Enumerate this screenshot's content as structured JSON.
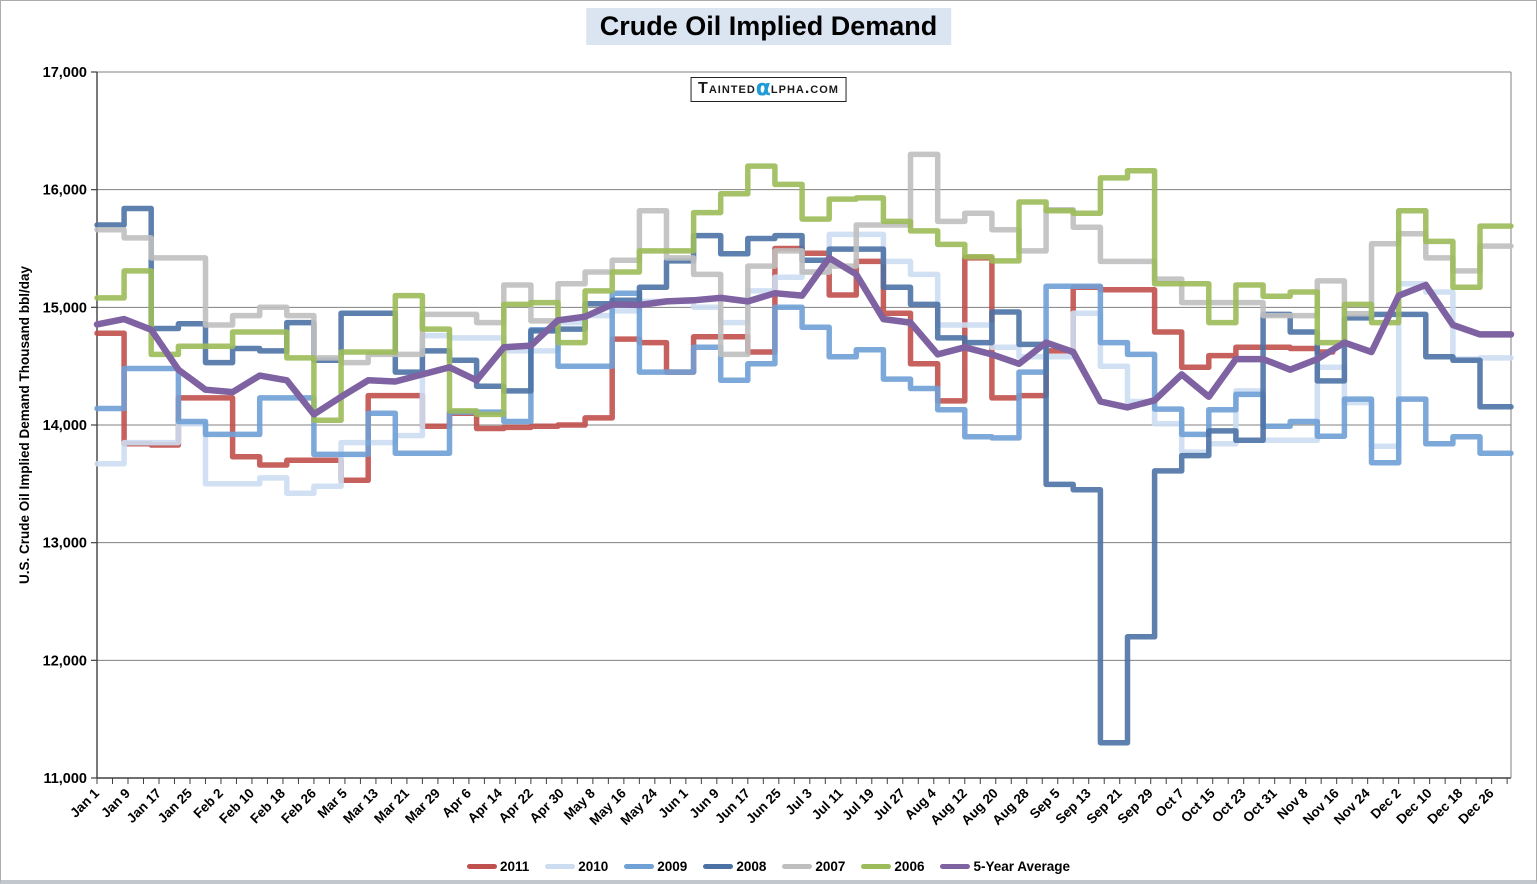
{
  "title": "Crude Oil Implied Demand",
  "watermark": {
    "prefix": "Tainted",
    "alpha": "α",
    "suffix": "lpha.com"
  },
  "legend": {
    "position": "bottom",
    "labels": [
      "2011",
      "2010",
      "2009",
      "2008",
      "2007",
      "2006",
      "5-Year Average"
    ]
  },
  "colors": {
    "2011": "#C0504D",
    "2010": "#CCDDF2",
    "2009": "#6FA0D6",
    "2008": "#4C72A5",
    "2007": "#BFBFBF",
    "2006": "#9CBB59",
    "5-Year Average": "#7E62A1",
    "title_background": "#dbe5f1",
    "watermark_alpha": "#1f9cd8",
    "gridline": "#808080",
    "axis": "#404040"
  },
  "chart_data": {
    "type": "line",
    "step": true,
    "title": "Crude Oil Implied Demand",
    "xlabel": "",
    "ylabel": "U.S. Crude Oil Implied Demand Thousand bbl/day",
    "ylim": [
      11000,
      17000
    ],
    "ytick_step": 1000,
    "grid": "horizontal",
    "legend_position": "bottom",
    "span_days": 365,
    "x_tick_step_days": 8,
    "point_interval_days": 7,
    "x_tick_labels": [
      "Jan 1",
      "Jan 9",
      "Jan 17",
      "Jan 25",
      "Feb 2",
      "Feb 10",
      "Feb 18",
      "Feb 26",
      "Mar 5",
      "Mar 13",
      "Mar 21",
      "Mar 29",
      "Apr 6",
      "Apr 14",
      "Apr 22",
      "Apr 30",
      "May 8",
      "May 16",
      "May 24",
      "Jun 1",
      "Jun 9",
      "Jun 17",
      "Jun 25",
      "Jul 3",
      "Jul 11",
      "Jul 19",
      "Jul 27",
      "Aug 4",
      "Aug 12",
      "Aug 20",
      "Aug 28",
      "Sep 5",
      "Sep 13",
      "Sep 21",
      "Sep 29",
      "Oct 7",
      "Oct 15",
      "Oct 23",
      "Oct 31",
      "Nov 8",
      "Nov 16",
      "Nov 24",
      "Dec 2",
      "Dec 10",
      "Dec 18",
      "Dec 26"
    ],
    "series": [
      {
        "name": "2011",
        "color": "#C0504D",
        "style": "step",
        "values": [
          14780,
          13840,
          13830,
          14230,
          14230,
          13730,
          13660,
          13700,
          13700,
          13530,
          14250,
          14250,
          13990,
          14100,
          13970,
          13980,
          13990,
          14000,
          14060,
          14730,
          14700,
          14450,
          14750,
          14750,
          14620,
          15500,
          15460,
          15105,
          15390,
          14950,
          14520,
          14205,
          15420,
          14230,
          14250,
          14630,
          15170,
          15150,
          15150,
          14790,
          14490,
          14590,
          14660,
          14660,
          14650,
          14620
        ]
      },
      {
        "name": "2010",
        "color": "#CCDDF2",
        "style": "step",
        "values": [
          13670,
          13850,
          13850,
          14010,
          13500,
          13500,
          13550,
          13420,
          13480,
          13850,
          13850,
          13910,
          14760,
          14740,
          14740,
          14630,
          14630,
          14870,
          14930,
          14970,
          15050,
          15050,
          15000,
          14870,
          15140,
          15255,
          15300,
          15620,
          15620,
          15390,
          15280,
          14850,
          14850,
          14660,
          14580,
          14580,
          14950,
          14500,
          14200,
          14010,
          13770,
          13840,
          14290,
          13870,
          13870,
          14490,
          14190,
          13820,
          15200,
          15130,
          14560,
          14570
        ]
      },
      {
        "name": "2009",
        "color": "#6FA0D6",
        "style": "step",
        "values": [
          14140,
          14480,
          14480,
          14030,
          13920,
          13920,
          14230,
          14230,
          13750,
          13750,
          14100,
          13760,
          13760,
          14110,
          14110,
          14030,
          14810,
          14500,
          14500,
          15120,
          14450,
          14450,
          14660,
          14380,
          14520,
          15000,
          14830,
          14580,
          14640,
          14390,
          14310,
          14130,
          13900,
          13890,
          14450,
          15180,
          15180,
          14700,
          14600,
          14135,
          13920,
          14130,
          14260,
          13990,
          14030,
          13905,
          14220,
          13680,
          14220,
          13840,
          13900,
          13760
        ]
      },
      {
        "name": "2008",
        "color": "#4C72A5",
        "style": "step",
        "values": [
          15700,
          15840,
          14820,
          14860,
          14530,
          14650,
          14630,
          14870,
          14550,
          14950,
          14950,
          14450,
          14630,
          14550,
          14330,
          14290,
          14800,
          14815,
          15030,
          15060,
          15170,
          15395,
          15610,
          15455,
          15585,
          15610,
          15400,
          15495,
          15495,
          15170,
          15025,
          14740,
          14700,
          14960,
          14685,
          13495,
          13450,
          11300,
          12200,
          13610,
          13740,
          13950,
          13870,
          14940,
          14790,
          14375,
          14910,
          14940,
          14940,
          14580,
          14550,
          14155
        ]
      },
      {
        "name": "2007",
        "color": "#BFBFBF",
        "style": "step",
        "values": [
          15660,
          15590,
          15420,
          15420,
          14850,
          14930,
          15000,
          14930,
          14570,
          14530,
          14600,
          14600,
          14940,
          14940,
          14870,
          15190,
          14885,
          15200,
          15300,
          15400,
          15820,
          15420,
          15280,
          14600,
          15350,
          15480,
          15300,
          15350,
          15700,
          15700,
          16300,
          15730,
          15800,
          15660,
          15480,
          15830,
          15680,
          15390,
          15390,
          15240,
          15040,
          15040,
          15040,
          14930,
          14930,
          15225,
          14945,
          15540,
          15625,
          15420,
          15310,
          15520
        ]
      },
      {
        "name": "2006",
        "color": "#9CBB59",
        "style": "step",
        "values": [
          15080,
          15310,
          14600,
          14670,
          14670,
          14790,
          14790,
          14570,
          14040,
          14620,
          14620,
          15100,
          14815,
          14120,
          14090,
          15025,
          15040,
          14700,
          15140,
          15300,
          15480,
          15480,
          15805,
          15965,
          16200,
          16045,
          15750,
          15920,
          15930,
          15730,
          15650,
          15535,
          15430,
          15395,
          15895,
          15820,
          15800,
          16100,
          16160,
          15200,
          15200,
          14870,
          15190,
          15095,
          15130,
          14700,
          15025,
          14870,
          15820,
          15560,
          15170,
          15690
        ]
      },
      {
        "name": "5-Year Average",
        "color": "#7E62A1",
        "style": "smooth",
        "values": [
          14855,
          14900,
          14810,
          14470,
          14300,
          14280,
          14420,
          14380,
          14090,
          14240,
          14380,
          14370,
          14430,
          14490,
          14380,
          14660,
          14675,
          14890,
          14920,
          15025,
          15020,
          15050,
          15060,
          15080,
          15050,
          15120,
          15100,
          15420,
          15280,
          14900,
          14870,
          14600,
          14660,
          14600,
          14520,
          14700,
          14620,
          14200,
          14150,
          14210,
          14430,
          14240,
          14560,
          14560,
          14470,
          14560,
          14700,
          14620,
          15100,
          15190,
          14850,
          14770
        ]
      }
    ]
  }
}
